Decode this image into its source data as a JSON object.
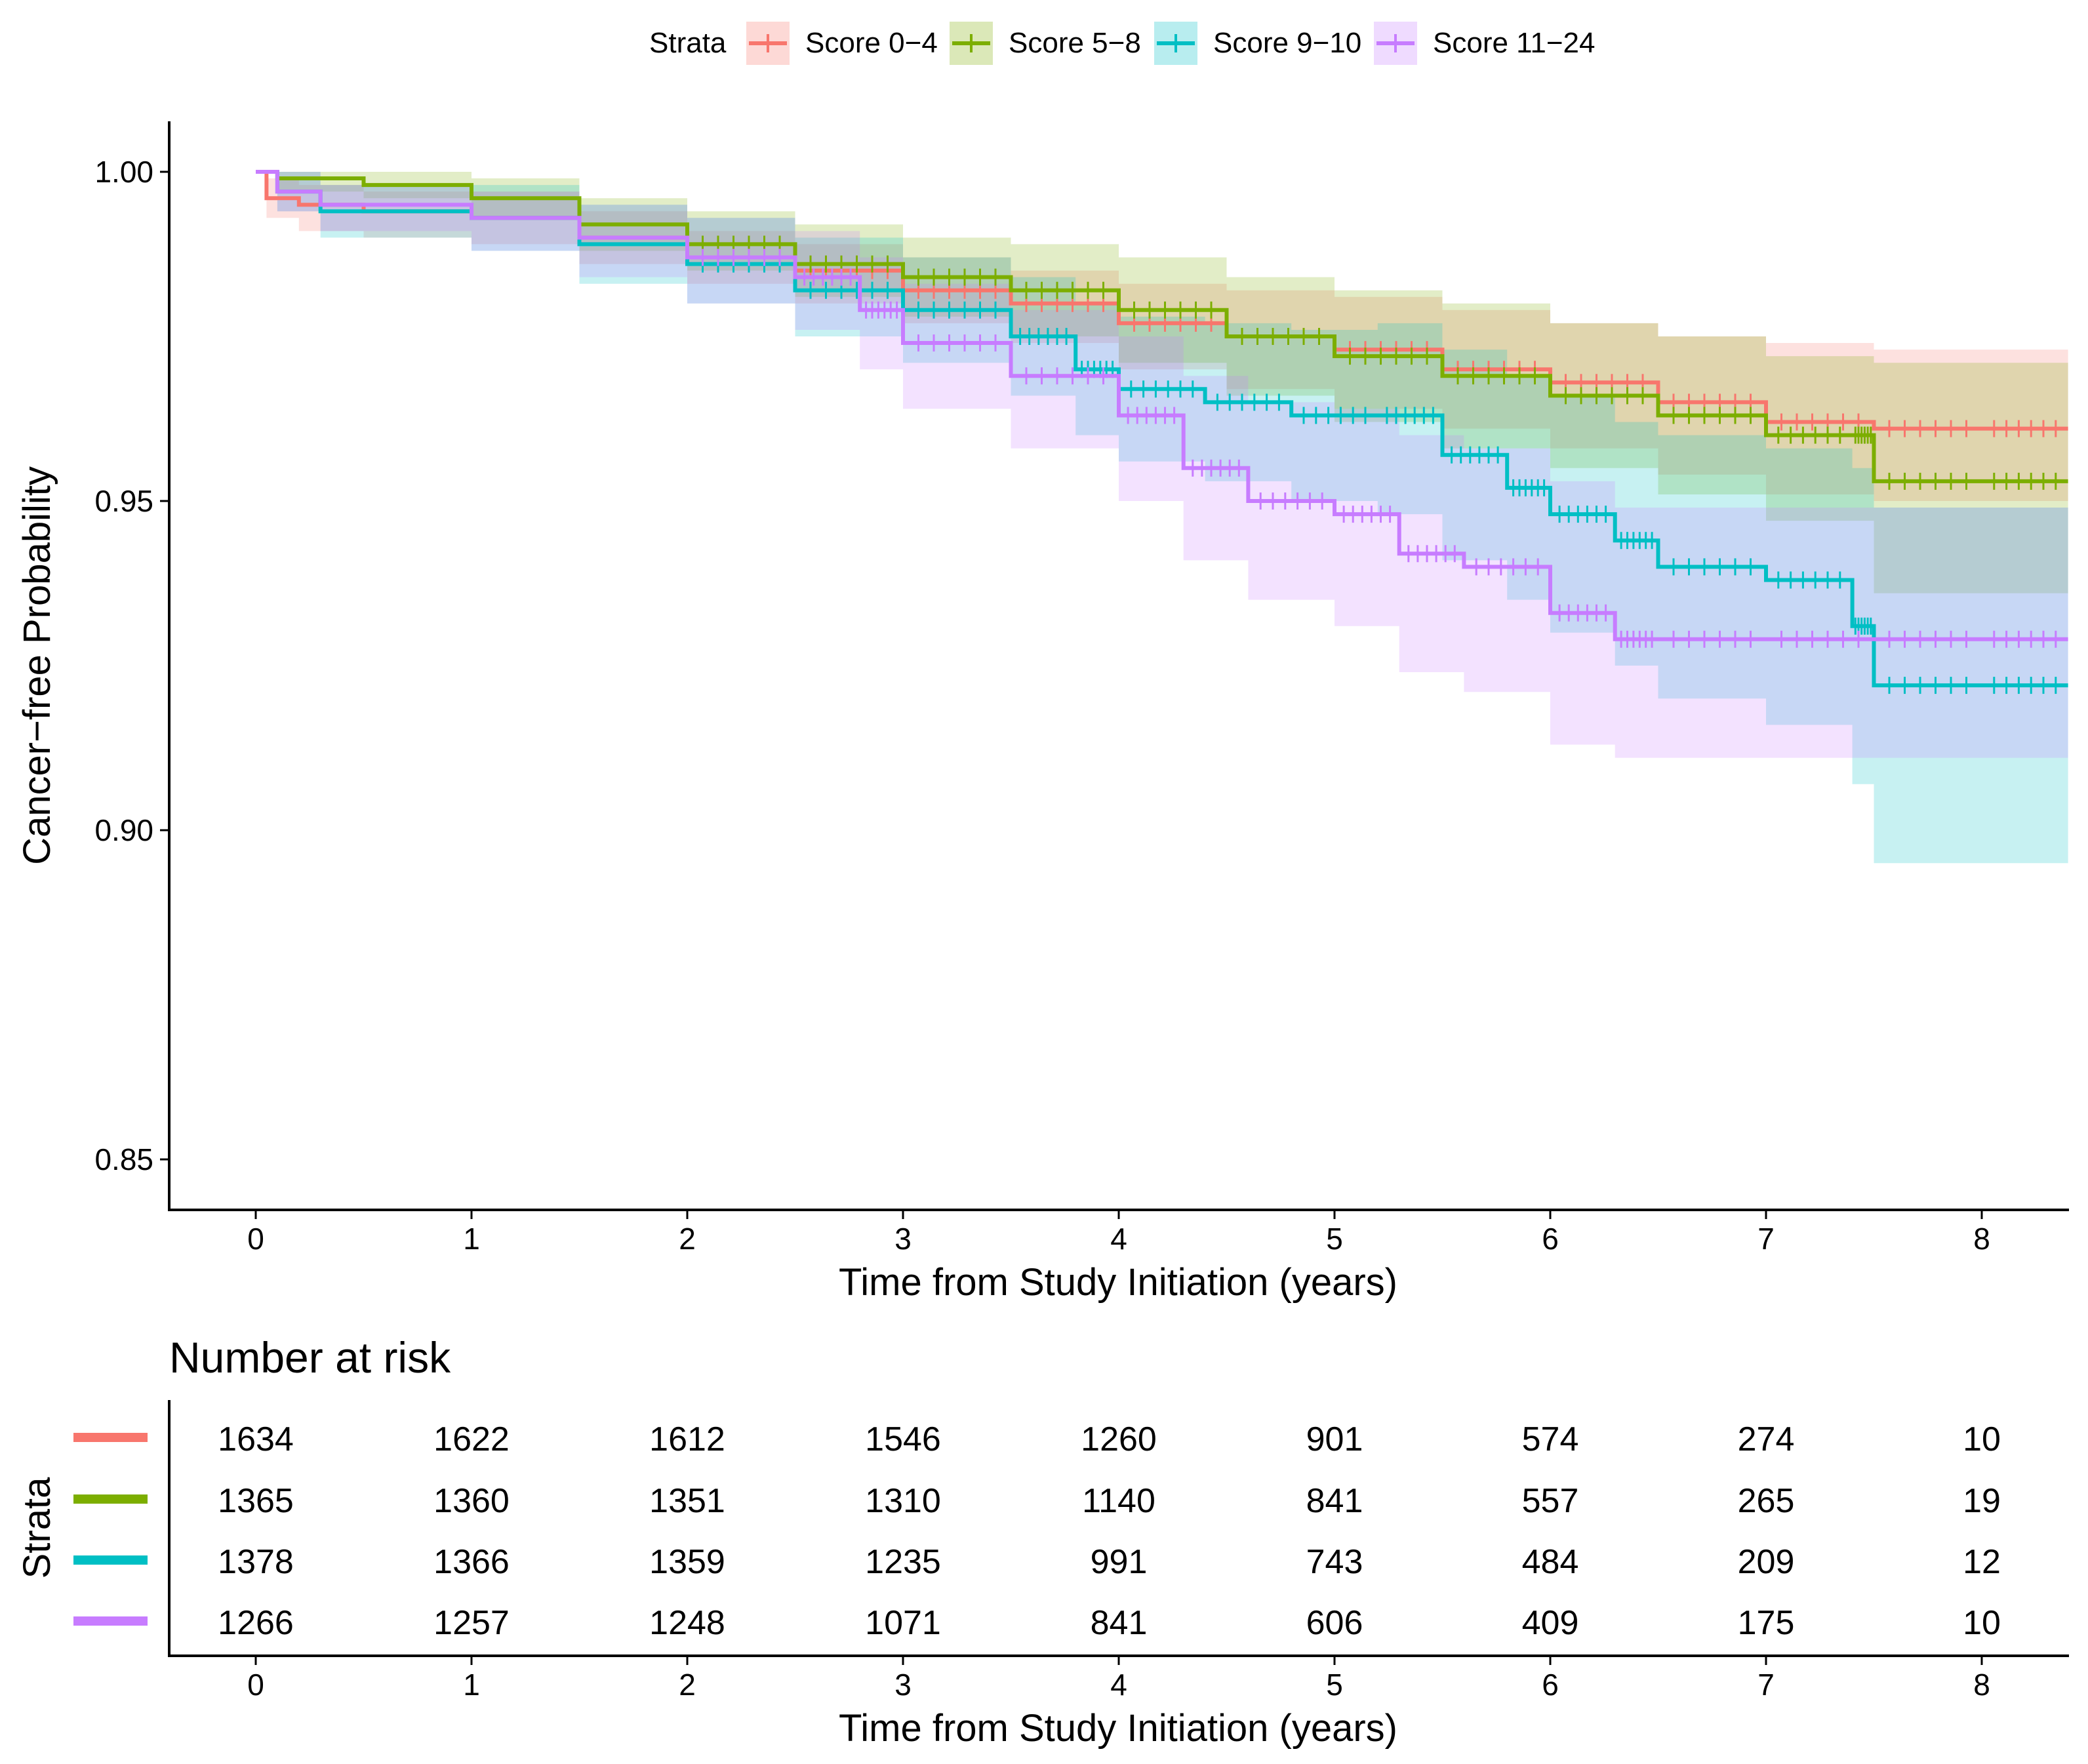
{
  "chart_data": {
    "type": "line",
    "subtype": "kaplan-meier",
    "title": "",
    "xlabel": "Time from Study Initiation (years)",
    "ylabel": "Cancer−free Probability",
    "xlim": [
      -0.4,
      8.4
    ],
    "ylim": [
      0.843,
      1.008
    ],
    "x_ticks": [
      0,
      1,
      2,
      3,
      4,
      5,
      6,
      7,
      8
    ],
    "y_ticks": [
      0.85,
      0.9,
      0.95,
      1.0
    ],
    "y_tick_labels": [
      "0.85",
      "0.90",
      "0.95",
      "1.00"
    ],
    "grid": false,
    "legend": {
      "title": "Strata",
      "position": "top",
      "entries": [
        "Score 0−4",
        "Score 5−8",
        "Score 9−10",
        "Score 11−24"
      ]
    },
    "series": [
      {
        "name": "Score 0−4",
        "color": "#F8766D",
        "x": [
          0,
          0.05,
          0.2,
          0.5,
          1.0,
          1.5,
          2.0,
          2.5,
          3.0,
          3.5,
          4.0,
          4.5,
          5.0,
          5.5,
          6.0,
          6.5,
          7.0,
          7.5,
          8.0,
          8.4
        ],
        "y": [
          1.0,
          0.996,
          0.995,
          0.994,
          0.993,
          0.99,
          0.987,
          0.985,
          0.982,
          0.98,
          0.977,
          0.975,
          0.973,
          0.97,
          0.968,
          0.965,
          0.962,
          0.961,
          0.961,
          0.961
        ],
        "lower": [
          1.0,
          0.993,
          0.991,
          0.99,
          0.989,
          0.986,
          0.983,
          0.98,
          0.977,
          0.974,
          0.97,
          0.967,
          0.964,
          0.961,
          0.958,
          0.954,
          0.951,
          0.95,
          0.95,
          0.95
        ],
        "upper": [
          1.0,
          0.999,
          0.998,
          0.997,
          0.997,
          0.994,
          0.991,
          0.989,
          0.987,
          0.985,
          0.983,
          0.982,
          0.981,
          0.979,
          0.977,
          0.975,
          0.974,
          0.973,
          0.973,
          0.973
        ]
      },
      {
        "name": "Score 5−8",
        "color": "#7CAE00",
        "x": [
          0,
          0.1,
          0.5,
          1.0,
          1.5,
          2.0,
          2.5,
          3.0,
          3.5,
          4.0,
          4.5,
          5.0,
          5.5,
          6.0,
          6.5,
          7.0,
          7.4,
          7.5,
          8.0,
          8.4
        ],
        "y": [
          1.0,
          0.999,
          0.998,
          0.996,
          0.992,
          0.989,
          0.986,
          0.984,
          0.982,
          0.979,
          0.975,
          0.972,
          0.969,
          0.966,
          0.963,
          0.96,
          0.96,
          0.953,
          0.953,
          0.953
        ],
        "lower": [
          1.0,
          0.997,
          0.996,
          0.993,
          0.988,
          0.985,
          0.981,
          0.978,
          0.975,
          0.971,
          0.966,
          0.962,
          0.958,
          0.955,
          0.951,
          0.947,
          0.947,
          0.936,
          0.936,
          0.936
        ],
        "upper": [
          1.0,
          1.0,
          1.0,
          0.999,
          0.996,
          0.994,
          0.992,
          0.99,
          0.989,
          0.987,
          0.984,
          0.982,
          0.98,
          0.977,
          0.975,
          0.972,
          0.972,
          0.971,
          0.971,
          0.971
        ]
      },
      {
        "name": "Score 9−10",
        "color": "#00BFC4",
        "x": [
          0,
          0.1,
          0.3,
          1.0,
          1.5,
          2.0,
          2.5,
          3.0,
          3.5,
          3.8,
          4.0,
          4.4,
          4.8,
          5.2,
          5.5,
          5.8,
          6.0,
          6.3,
          6.5,
          7.0,
          7.4,
          7.5,
          8.0,
          8.4
        ],
        "y": [
          1.0,
          0.997,
          0.994,
          0.993,
          0.989,
          0.986,
          0.982,
          0.979,
          0.975,
          0.97,
          0.967,
          0.965,
          0.963,
          0.963,
          0.957,
          0.952,
          0.948,
          0.944,
          0.94,
          0.938,
          0.931,
          0.922,
          0.922,
          0.922
        ],
        "lower": [
          1.0,
          0.994,
          0.99,
          0.988,
          0.983,
          0.98,
          0.975,
          0.971,
          0.966,
          0.96,
          0.956,
          0.953,
          0.95,
          0.948,
          0.941,
          0.935,
          0.93,
          0.925,
          0.92,
          0.916,
          0.907,
          0.895,
          0.895,
          0.895
        ],
        "upper": [
          1.0,
          1.0,
          0.998,
          0.998,
          0.995,
          0.993,
          0.99,
          0.987,
          0.984,
          0.98,
          0.978,
          0.977,
          0.976,
          0.977,
          0.973,
          0.969,
          0.966,
          0.962,
          0.96,
          0.958,
          0.955,
          0.949,
          0.949,
          0.949
        ]
      },
      {
        "name": "Score 11−24",
        "color": "#C77CFF",
        "x": [
          0,
          0.1,
          0.3,
          1.0,
          1.5,
          2.0,
          2.5,
          2.8,
          3.0,
          3.5,
          4.0,
          4.3,
          4.6,
          5.0,
          5.3,
          5.6,
          6.0,
          6.3,
          6.5,
          7.0,
          7.5,
          8.0,
          8.4
        ],
        "y": [
          1.0,
          0.997,
          0.995,
          0.993,
          0.99,
          0.987,
          0.984,
          0.979,
          0.974,
          0.969,
          0.963,
          0.955,
          0.95,
          0.948,
          0.942,
          0.94,
          0.933,
          0.929,
          0.929,
          0.929,
          0.929,
          0.929,
          0.929
        ],
        "lower": [
          1.0,
          0.994,
          0.991,
          0.988,
          0.984,
          0.98,
          0.976,
          0.97,
          0.964,
          0.958,
          0.95,
          0.941,
          0.935,
          0.931,
          0.924,
          0.921,
          0.913,
          0.911,
          0.911,
          0.911,
          0.911,
          0.911,
          0.911
        ],
        "upper": [
          1.0,
          1.0,
          0.998,
          0.997,
          0.995,
          0.993,
          0.991,
          0.987,
          0.983,
          0.979,
          0.975,
          0.969,
          0.965,
          0.964,
          0.96,
          0.958,
          0.953,
          0.949,
          0.949,
          0.949,
          0.949,
          0.949,
          0.949
        ]
      }
    ],
    "risk_table": {
      "title": "Number at risk",
      "ylabel": "Strata",
      "xlabel": "Time from Study Initiation (years)",
      "x_ticks": [
        0,
        1,
        2,
        3,
        4,
        5,
        6,
        7,
        8
      ],
      "rows": [
        {
          "name": "Score 0−4",
          "color": "#F8766D",
          "values": [
            1634,
            1622,
            1612,
            1546,
            1260,
            901,
            574,
            274,
            10
          ]
        },
        {
          "name": "Score 5−8",
          "color": "#7CAE00",
          "values": [
            1365,
            1360,
            1351,
            1310,
            1140,
            841,
            557,
            265,
            19
          ]
        },
        {
          "name": "Score 9−10",
          "color": "#00BFC4",
          "values": [
            1378,
            1366,
            1359,
            1235,
            991,
            743,
            484,
            209,
            12
          ]
        },
        {
          "name": "Score 11−24",
          "color": "#C77CFF",
          "values": [
            1266,
            1257,
            1248,
            1071,
            841,
            606,
            409,
            175,
            10
          ]
        }
      ]
    }
  }
}
